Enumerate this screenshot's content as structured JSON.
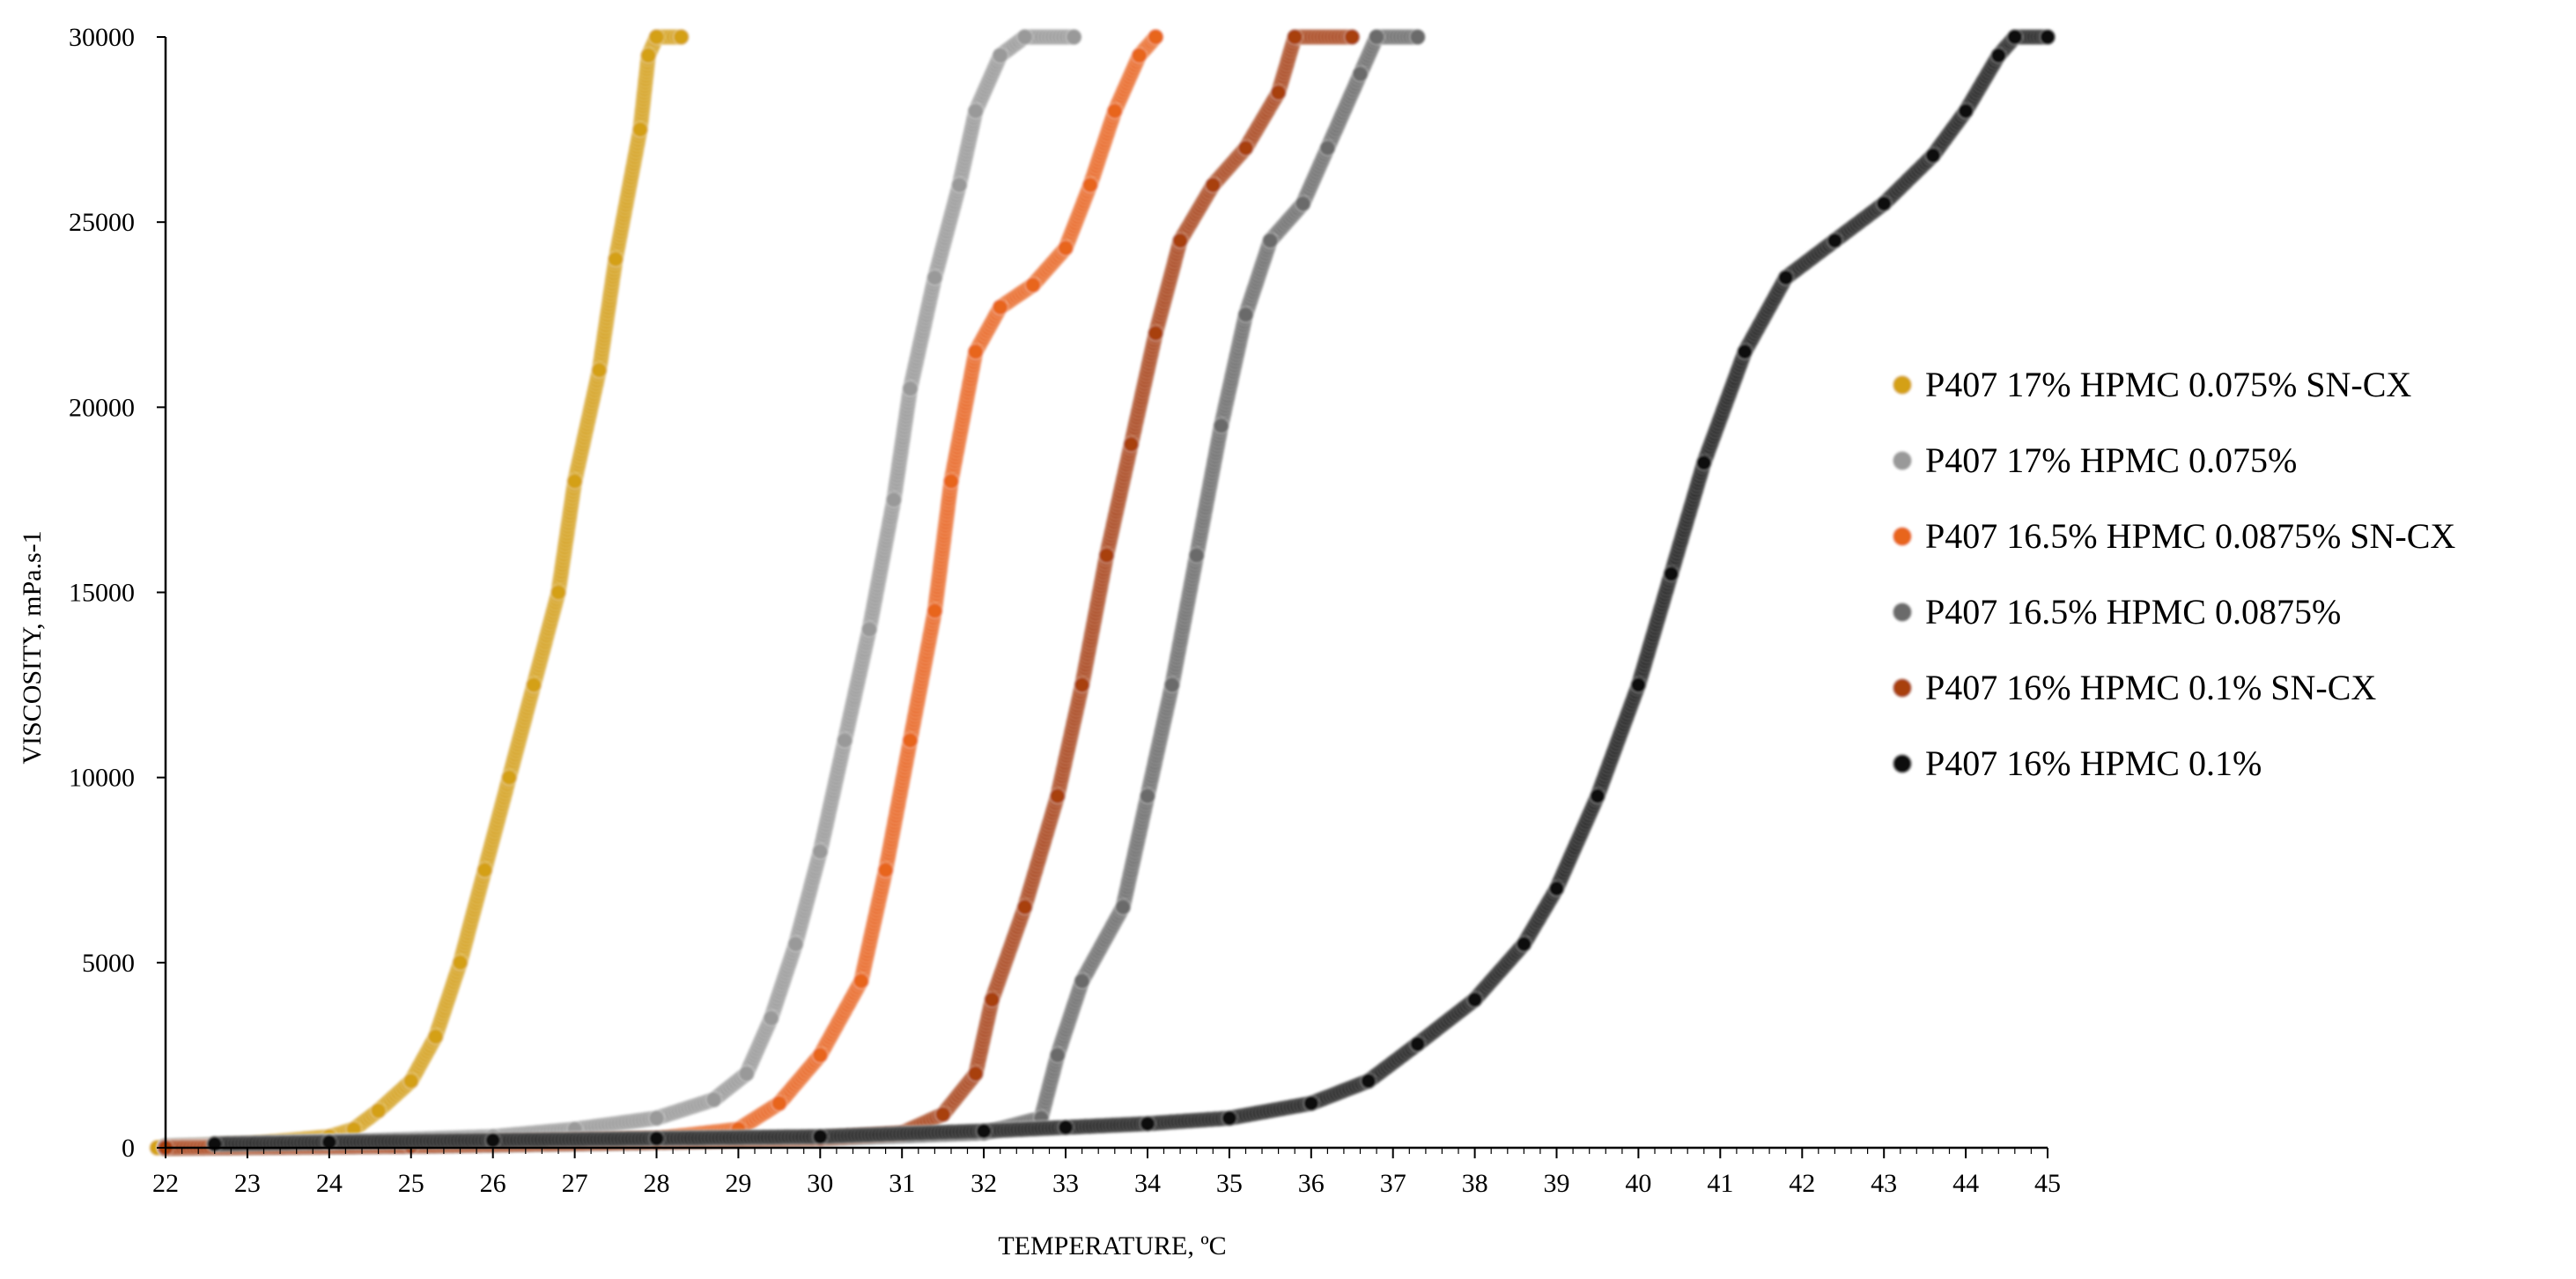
{
  "chart_data": {
    "type": "scatter",
    "title": "",
    "xlabel": "TEMPERATURE, ºC",
    "ylabel": "VISCOSITY, mPa.s-1",
    "xlim": [
      22,
      45
    ],
    "ylim": [
      0,
      30000
    ],
    "x_ticks": [
      "22",
      "23",
      "24",
      "25",
      "26",
      "27",
      "28",
      "29",
      "30",
      "31",
      "32",
      "33",
      "34",
      "35",
      "36",
      "37",
      "38",
      "39",
      "40",
      "41",
      "42",
      "43",
      "44",
      "45"
    ],
    "y_ticks": [
      "0",
      "5000",
      "10000",
      "15000",
      "20000",
      "25000",
      "30000"
    ],
    "grid": false,
    "legend_position": "right",
    "series": [
      {
        "name": "P407 17% HPMC 0.075% SN-CX",
        "color": "#D4A012",
        "points": [
          [
            21.9,
            0
          ],
          [
            23,
            100
          ],
          [
            24,
            300
          ],
          [
            24.3,
            500
          ],
          [
            24.6,
            1000
          ],
          [
            25,
            1800
          ],
          [
            25.3,
            3000
          ],
          [
            25.6,
            5000
          ],
          [
            25.9,
            7500
          ],
          [
            26.2,
            10000
          ],
          [
            26.5,
            12500
          ],
          [
            26.8,
            15000
          ],
          [
            27,
            18000
          ],
          [
            27.3,
            21000
          ],
          [
            27.5,
            24000
          ],
          [
            27.8,
            27500
          ],
          [
            27.9,
            29500
          ],
          [
            28,
            30000
          ],
          [
            28.3,
            30000
          ]
        ]
      },
      {
        "name": "P407 17% HPMC 0.075%",
        "color": "#999999",
        "points": [
          [
            22,
            50
          ],
          [
            24,
            150
          ],
          [
            26,
            300
          ],
          [
            27,
            500
          ],
          [
            28,
            800
          ],
          [
            28.7,
            1300
          ],
          [
            29.1,
            2000
          ],
          [
            29.4,
            3500
          ],
          [
            29.7,
            5500
          ],
          [
            30,
            8000
          ],
          [
            30.3,
            11000
          ],
          [
            30.6,
            14000
          ],
          [
            30.9,
            17500
          ],
          [
            31.1,
            20500
          ],
          [
            31.4,
            23500
          ],
          [
            31.7,
            26000
          ],
          [
            31.9,
            28000
          ],
          [
            32.2,
            29500
          ],
          [
            32.5,
            30000
          ],
          [
            33.1,
            30000
          ]
        ]
      },
      {
        "name": "P407 16.5% HPMC 0.0875% SN-CX",
        "color": "#E8651A",
        "points": [
          [
            22,
            0
          ],
          [
            24,
            50
          ],
          [
            26,
            150
          ],
          [
            28,
            250
          ],
          [
            29,
            500
          ],
          [
            29.5,
            1200
          ],
          [
            30,
            2500
          ],
          [
            30.5,
            4500
          ],
          [
            30.8,
            7500
          ],
          [
            31.1,
            11000
          ],
          [
            31.4,
            14500
          ],
          [
            31.6,
            18000
          ],
          [
            31.9,
            21500
          ],
          [
            32.2,
            22700
          ],
          [
            32.6,
            23300
          ],
          [
            33,
            24300
          ],
          [
            33.3,
            26000
          ],
          [
            33.6,
            28000
          ],
          [
            33.9,
            29500
          ],
          [
            34.1,
            30000
          ]
        ]
      },
      {
        "name": "P407 16.5% HPMC 0.0875%",
        "color": "#6B6B6B",
        "points": [
          [
            22,
            0
          ],
          [
            25,
            50
          ],
          [
            28,
            150
          ],
          [
            30,
            250
          ],
          [
            32,
            400
          ],
          [
            32.7,
            800
          ],
          [
            32.9,
            2500
          ],
          [
            33.2,
            4500
          ],
          [
            33.7,
            6500
          ],
          [
            34,
            9500
          ],
          [
            34.3,
            12500
          ],
          [
            34.6,
            16000
          ],
          [
            34.9,
            19500
          ],
          [
            35.2,
            22500
          ],
          [
            35.5,
            24500
          ],
          [
            35.9,
            25500
          ],
          [
            36.2,
            27000
          ],
          [
            36.6,
            29000
          ],
          [
            36.8,
            30000
          ],
          [
            37.3,
            30000
          ]
        ]
      },
      {
        "name": "P407 16% HPMC 0.1% SN-CX",
        "color": "#A8400F",
        "points": [
          [
            22,
            0
          ],
          [
            25,
            50
          ],
          [
            28,
            150
          ],
          [
            30,
            250
          ],
          [
            31,
            400
          ],
          [
            31.5,
            900
          ],
          [
            31.9,
            2000
          ],
          [
            32.1,
            4000
          ],
          [
            32.5,
            6500
          ],
          [
            32.9,
            9500
          ],
          [
            33.2,
            12500
          ],
          [
            33.5,
            16000
          ],
          [
            33.8,
            19000
          ],
          [
            34.1,
            22000
          ],
          [
            34.4,
            24500
          ],
          [
            34.8,
            26000
          ],
          [
            35.2,
            27000
          ],
          [
            35.6,
            28500
          ],
          [
            35.8,
            30000
          ],
          [
            36.5,
            30000
          ]
        ]
      },
      {
        "name": "P407 16% HPMC 0.1%",
        "color": "#111111",
        "points": [
          [
            22.6,
            100
          ],
          [
            24,
            150
          ],
          [
            26,
            200
          ],
          [
            28,
            250
          ],
          [
            30,
            300
          ],
          [
            32,
            450
          ],
          [
            33,
            550
          ],
          [
            34,
            650
          ],
          [
            35,
            800
          ],
          [
            36,
            1200
          ],
          [
            36.7,
            1800
          ],
          [
            37.3,
            2800
          ],
          [
            38,
            4000
          ],
          [
            38.6,
            5500
          ],
          [
            39,
            7000
          ],
          [
            39.5,
            9500
          ],
          [
            40,
            12500
          ],
          [
            40.4,
            15500
          ],
          [
            40.8,
            18500
          ],
          [
            41.3,
            21500
          ],
          [
            41.8,
            23500
          ],
          [
            42.4,
            24500
          ],
          [
            43,
            25500
          ],
          [
            43.6,
            26800
          ],
          [
            44,
            28000
          ],
          [
            44.4,
            29500
          ],
          [
            44.6,
            30000
          ],
          [
            45,
            30000
          ]
        ]
      }
    ]
  }
}
